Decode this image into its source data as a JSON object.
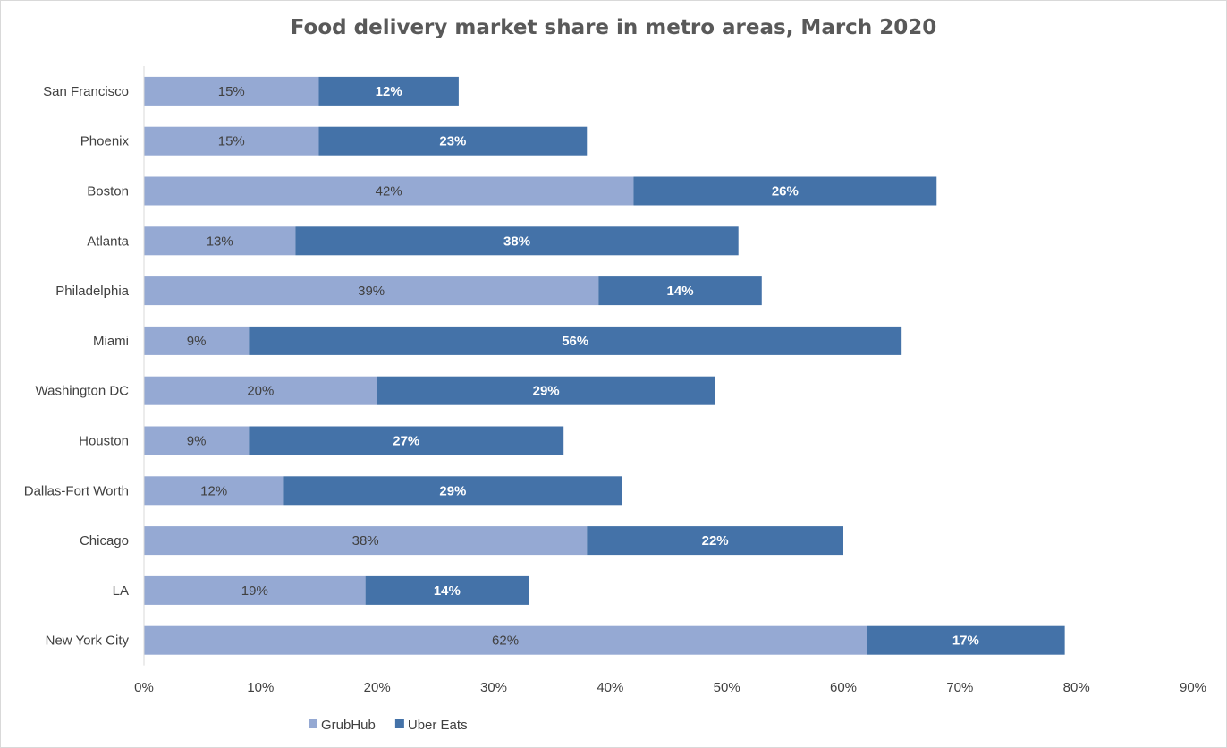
{
  "chart_data": {
    "type": "bar",
    "orientation": "horizontal",
    "stacked": true,
    "title": "Food delivery market share in metro areas, March 2020",
    "xlabel": "",
    "ylabel": "",
    "categories": [
      "San Francisco",
      "Phoenix",
      "Boston",
      "Atlanta",
      "Philadelphia",
      "Miami",
      "Washington DC",
      "Houston",
      "Dallas-Fort Worth",
      "Chicago",
      "LA",
      "New York City"
    ],
    "series": [
      {
        "name": "GrubHub",
        "color": "#95a9d3",
        "values": [
          15,
          15,
          42,
          13,
          39,
          9,
          20,
          9,
          12,
          38,
          19,
          62
        ],
        "labels": [
          "15%",
          "15%",
          "42%",
          "13%",
          "39%",
          "9%",
          "20%",
          "9%",
          "12%",
          "38%",
          "19%",
          "62%"
        ]
      },
      {
        "name": "Uber Eats",
        "color": "#4472a8",
        "values": [
          12,
          23,
          26,
          38,
          14,
          56,
          29,
          27,
          29,
          22,
          14,
          17
        ],
        "labels": [
          "12%",
          "23%",
          "26%",
          "38%",
          "14%",
          "56%",
          "29%",
          "27%",
          "29%",
          "22%",
          "14%",
          "17%"
        ]
      }
    ],
    "xlim": [
      0,
      90
    ],
    "ticks": [
      0,
      10,
      20,
      30,
      40,
      50,
      60,
      70,
      80,
      90
    ],
    "tick_labels": [
      "0%",
      "10%",
      "20%",
      "30%",
      "40%",
      "50%",
      "60%",
      "70%",
      "80%",
      "90%"
    ],
    "grid": false,
    "legend_position": "bottom-center"
  }
}
